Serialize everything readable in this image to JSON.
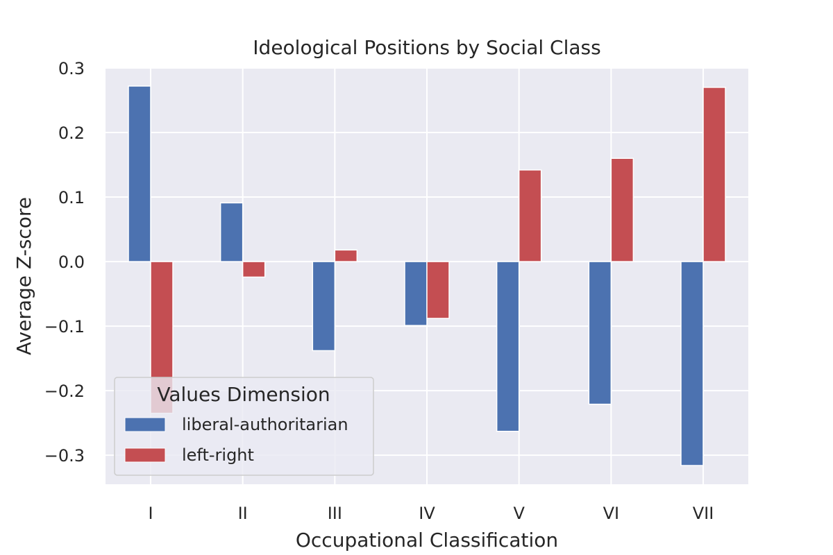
{
  "chart_data": {
    "type": "bar",
    "title": "Ideological Positions by Social Class",
    "xlabel": "Occupational Classification",
    "ylabel": "Average Z-score",
    "categories": [
      "I",
      "II",
      "III",
      "IV",
      "V",
      "VI",
      "VII"
    ],
    "ylim": [
      -0.345,
      0.3
    ],
    "yticks": [
      0.3,
      0.2,
      0.1,
      0.0,
      -0.1,
      -0.2,
      -0.3
    ],
    "ytick_labels": [
      "0.3",
      "0.2",
      "0.1",
      "0.0",
      "−0.1",
      "−0.2",
      "−0.3"
    ],
    "grid": true,
    "legend": {
      "title": "Values Dimension",
      "placement": "lower-left"
    },
    "series": [
      {
        "name": "liberal-authoritarian",
        "color": "#4c72b0",
        "values": [
          0.272,
          0.091,
          -0.138,
          -0.099,
          -0.263,
          -0.221,
          -0.316
        ]
      },
      {
        "name": "left-right",
        "color": "#c44e52",
        "values": [
          -0.235,
          -0.024,
          0.018,
          -0.088,
          0.142,
          0.16,
          0.27
        ]
      }
    ],
    "style": {
      "plot_background": "#eaeaf2",
      "grid_color": "#ffffff",
      "bar_edge_color": "#ffffff"
    }
  }
}
